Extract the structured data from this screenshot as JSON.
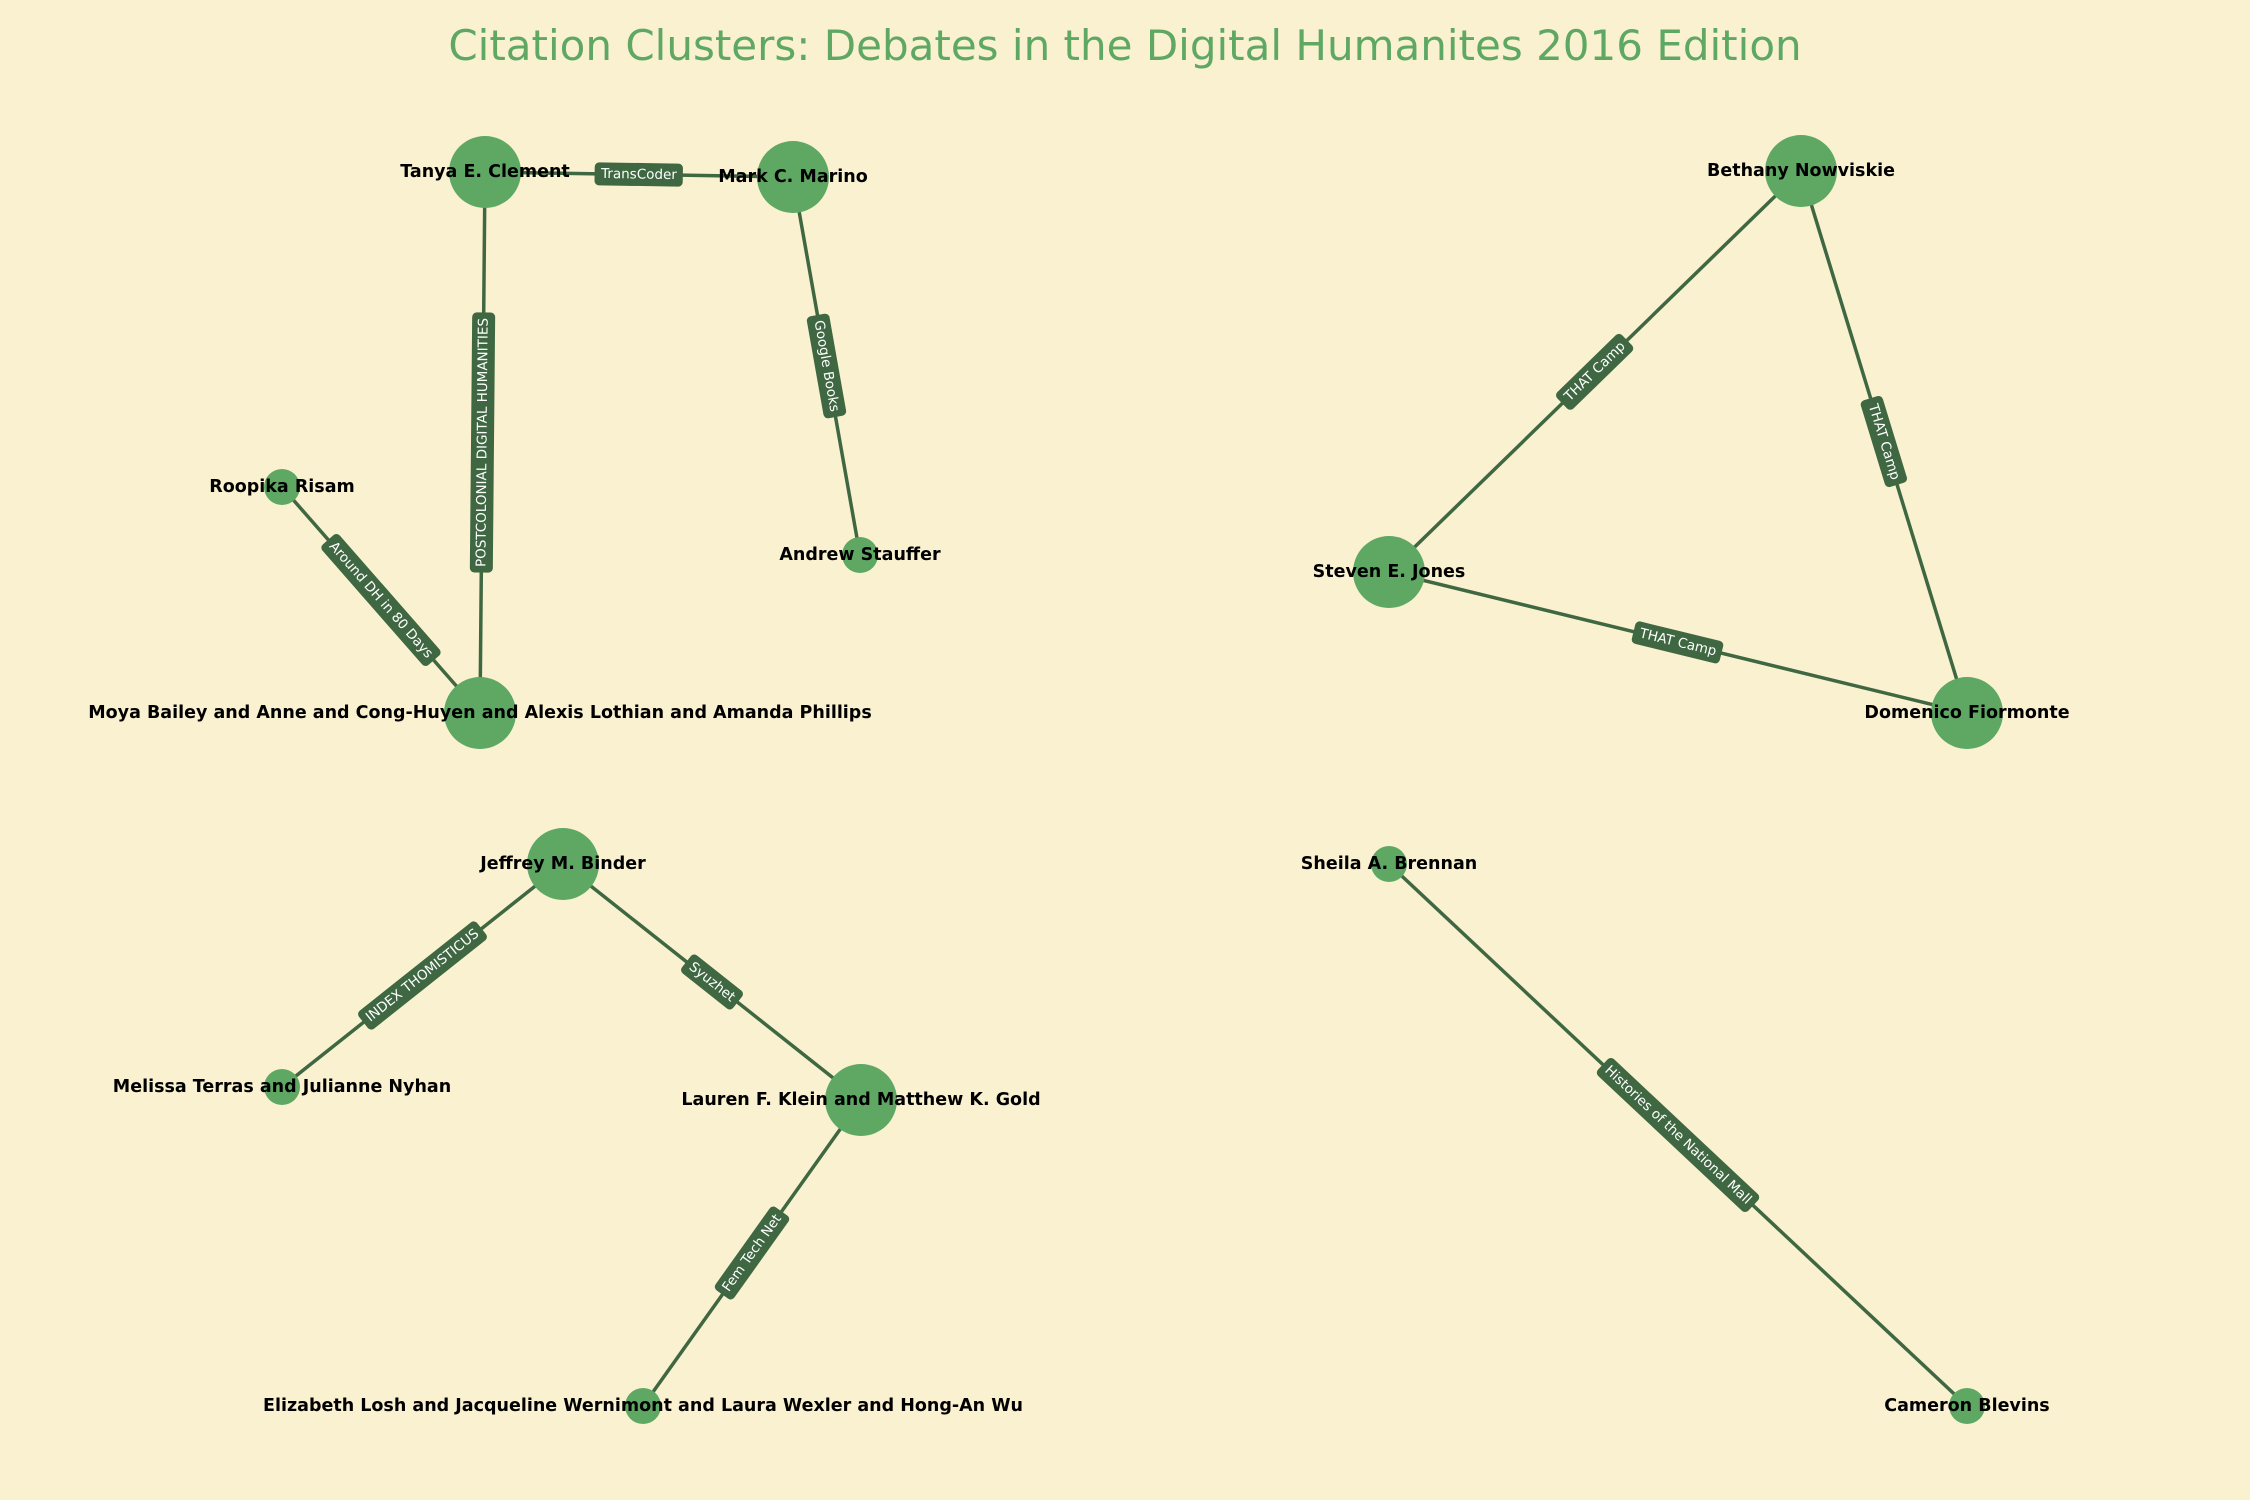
{
  "title": "Citation Clusters: Debates in the Digital Humanites 2016 Edition",
  "colors": {
    "background": "#FAF1D0",
    "node": "#5EA864",
    "edge": "#3F6842",
    "title": "#5EA864",
    "edge_label_text": "#FFFFFF"
  },
  "clusters": [
    {
      "nodes": [
        {
          "id": "tanya",
          "label": "Tanya E. Clement",
          "size": "large"
        },
        {
          "id": "marino",
          "label": "Mark C. Marino",
          "size": "large"
        },
        {
          "id": "stauffer",
          "label": "Andrew Stauffer",
          "size": "small"
        },
        {
          "id": "risam",
          "label": "Roopika Risam",
          "size": "small"
        },
        {
          "id": "bailey",
          "label": "Moya Bailey and Anne and Cong-Huyen and Alexis Lothian and Amanda Phillips",
          "size": "large"
        }
      ],
      "edges": [
        {
          "source": "tanya",
          "target": "marino",
          "label": "TransCoder"
        },
        {
          "source": "marino",
          "target": "stauffer",
          "label": "Google Books"
        },
        {
          "source": "tanya",
          "target": "bailey",
          "label": "POSTCOLONIAL DIGITAL HUMANITIES"
        },
        {
          "source": "risam",
          "target": "bailey",
          "label": "Around DH in 80 Days"
        }
      ]
    },
    {
      "nodes": [
        {
          "id": "nowviskie",
          "label": "Bethany Nowviskie",
          "size": "large"
        },
        {
          "id": "jones",
          "label": "Steven E. Jones",
          "size": "large"
        },
        {
          "id": "fiormonte",
          "label": "Domenico Fiormonte",
          "size": "large"
        }
      ],
      "edges": [
        {
          "source": "nowviskie",
          "target": "jones",
          "label": "THAT Camp"
        },
        {
          "source": "nowviskie",
          "target": "fiormonte",
          "label": "THAT Camp"
        },
        {
          "source": "jones",
          "target": "fiormonte",
          "label": "THAT Camp"
        }
      ]
    },
    {
      "nodes": [
        {
          "id": "binder",
          "label": "Jeffrey M. Binder",
          "size": "large"
        },
        {
          "id": "terras",
          "label": "Melissa Terras and Julianne Nyhan",
          "size": "small"
        },
        {
          "id": "klein",
          "label": "Lauren F. Klein and Matthew K. Gold",
          "size": "large"
        },
        {
          "id": "losh",
          "label": "Elizabeth Losh and Jacqueline Wernimont and Laura Wexler and Hong-An Wu",
          "size": "small"
        }
      ],
      "edges": [
        {
          "source": "binder",
          "target": "terras",
          "label": "INDEX THOMISTICUS"
        },
        {
          "source": "binder",
          "target": "klein",
          "label": "Syuzhet"
        },
        {
          "source": "klein",
          "target": "losh",
          "label": "Fem Tech Net"
        }
      ]
    },
    {
      "nodes": [
        {
          "id": "brennan",
          "label": "Sheila A. Brennan",
          "size": "small"
        },
        {
          "id": "blevins",
          "label": "Cameron Blevins",
          "size": "small"
        }
      ],
      "edges": [
        {
          "source": "brennan",
          "target": "blevins",
          "label": "Histories of the National Mall"
        }
      ]
    }
  ]
}
